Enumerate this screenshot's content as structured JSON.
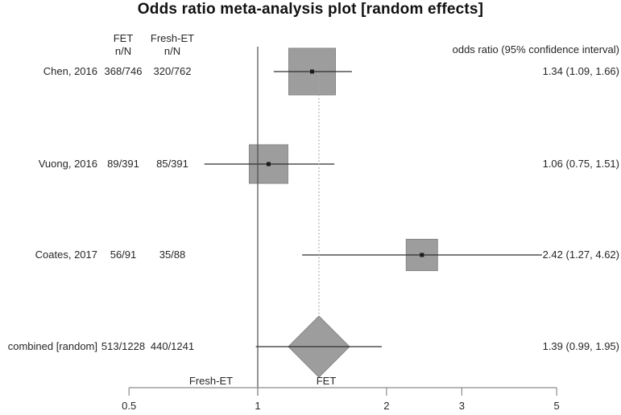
{
  "title": "Odds ratio meta-analysis plot [random effects]",
  "chart_data": {
    "type": "forest",
    "title": "Odds ratio meta-analysis plot [random effects]",
    "columns": {
      "group1_header": "FET",
      "group1_sub": "n/N",
      "group2_header": "Fresh-ET",
      "group2_sub": "n/N",
      "effect_header": "odds ratio (95% confidence interval)"
    },
    "x_axis": {
      "scale": "log",
      "range": [
        0.5,
        5
      ],
      "ticks": [
        "0.5",
        "1",
        "2",
        "3",
        "5"
      ],
      "tick_values": [
        0.5,
        1,
        2,
        3,
        5
      ],
      "null_value": 1,
      "left_region_label": "Fresh-ET",
      "right_region_label": "FET"
    },
    "studies": [
      {
        "label": "Chen, 2016",
        "group1_nN": "368/746",
        "group2_nN": "320/762",
        "or": 1.34,
        "ci_low": 1.09,
        "ci_high": 1.66,
        "effect_text": "1.34 (1.09, 1.66)",
        "marker_size": 58
      },
      {
        "label": "Vuong, 2016",
        "group1_nN": "89/391",
        "group2_nN": "85/391",
        "or": 1.06,
        "ci_low": 0.75,
        "ci_high": 1.51,
        "effect_text": "1.06 (0.75, 1.51)",
        "marker_size": 48
      },
      {
        "label": "Coates, 2017",
        "group1_nN": "56/91",
        "group2_nN": "35/88",
        "or": 2.42,
        "ci_low": 1.27,
        "ci_high": 4.62,
        "effect_text": "2.42 (1.27, 4.62)",
        "marker_size": 39
      }
    ],
    "combined": {
      "label": "combined [random]",
      "group1_nN": "513/1228",
      "group2_nN": "440/1241",
      "or": 1.39,
      "ci_low": 0.99,
      "ci_high": 1.95,
      "effect_text": "1.39 (0.99, 1.95)",
      "diamond_half_width": 38,
      "diamond_half_height": 38
    },
    "colors": {
      "marker_fill": "#9d9d9d",
      "marker_edge": "#868686",
      "ci_line": "#2e2e2e",
      "null_line": "#4d4d4d",
      "dotted_line": "#a8a8a8",
      "axis": "#8c8c8c",
      "text": "#262626",
      "dot": "#1a1a1a"
    }
  }
}
